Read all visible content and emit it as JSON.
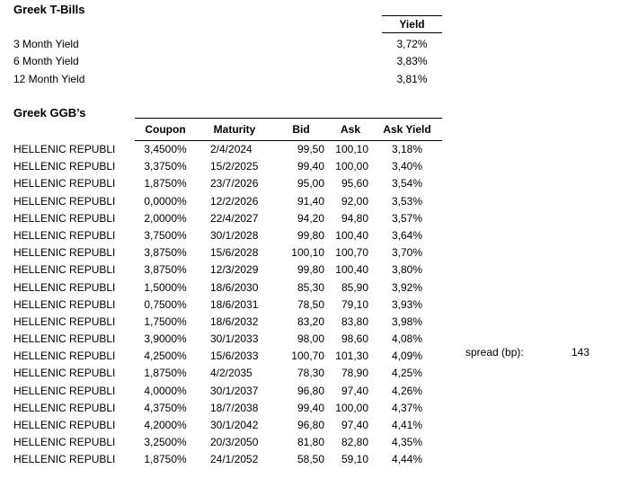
{
  "tbills": {
    "title": "Greek T-Bills",
    "yield_header": "Yield",
    "rows": [
      {
        "label": "3 Month Yield",
        "value": "3,72%"
      },
      {
        "label": "6 Month Yield",
        "value": "3,83%"
      },
      {
        "label": "12 Month Yield",
        "value": "3,81%"
      }
    ]
  },
  "ggb": {
    "title": "Greek GGB’s",
    "headers": {
      "coupon": "Coupon",
      "maturity": "Maturity",
      "bid": "Bid",
      "ask": "Ask",
      "ask_yield": "Ask Yield"
    },
    "rows": [
      {
        "name": "HELLENIC REPUBLI",
        "coupon": "3,4500%",
        "maturity": "2/4/2024",
        "bid": "99,50",
        "ask": "100,10",
        "ask_yield": "3,18%"
      },
      {
        "name": "HELLENIC REPUBLI",
        "coupon": "3,3750%",
        "maturity": "15/2/2025",
        "bid": "99,40",
        "ask": "100,00",
        "ask_yield": "3,40%"
      },
      {
        "name": "HELLENIC REPUBLI",
        "coupon": "1,8750%",
        "maturity": "23/7/2026",
        "bid": "95,00",
        "ask": "95,60",
        "ask_yield": "3,54%"
      },
      {
        "name": "HELLENIC REPUBLI",
        "coupon": "0,0000%",
        "maturity": "12/2/2026",
        "bid": "91,40",
        "ask": "92,00",
        "ask_yield": "3,53%"
      },
      {
        "name": "HELLENIC REPUBLI",
        "coupon": "2,0000%",
        "maturity": "22/4/2027",
        "bid": "94,20",
        "ask": "94,80",
        "ask_yield": "3,57%"
      },
      {
        "name": "HELLENIC REPUBLI",
        "coupon": "3,7500%",
        "maturity": "30/1/2028",
        "bid": "99,80",
        "ask": "100,40",
        "ask_yield": "3,64%"
      },
      {
        "name": "HELLENIC REPUBLI",
        "coupon": "3,8750%",
        "maturity": "15/6/2028",
        "bid": "100,10",
        "ask": "100,70",
        "ask_yield": "3,70%"
      },
      {
        "name": "HELLENIC REPUBLI",
        "coupon": "3,8750%",
        "maturity": "12/3/2029",
        "bid": "99,80",
        "ask": "100,40",
        "ask_yield": "3,80%"
      },
      {
        "name": "HELLENIC REPUBLI",
        "coupon": "1,5000%",
        "maturity": "18/6/2030",
        "bid": "85,30",
        "ask": "85,90",
        "ask_yield": "3,92%"
      },
      {
        "name": "HELLENIC REPUBLI",
        "coupon": "0,7500%",
        "maturity": "18/6/2031",
        "bid": "78,50",
        "ask": "79,10",
        "ask_yield": "3,93%"
      },
      {
        "name": "HELLENIC REPUBLI",
        "coupon": "1,7500%",
        "maturity": "18/6/2032",
        "bid": "83,20",
        "ask": "83,80",
        "ask_yield": "3,98%"
      },
      {
        "name": "HELLENIC REPUBLI",
        "coupon": "3,9000%",
        "maturity": "30/1/2033",
        "bid": "98,00",
        "ask": "98,60",
        "ask_yield": "4,08%"
      },
      {
        "name": "HELLENIC REPUBLI",
        "coupon": "4,2500%",
        "maturity": "15/6/2033",
        "bid": "100,70",
        "ask": "101,30",
        "ask_yield": "4,09%"
      },
      {
        "name": "HELLENIC REPUBLI",
        "coupon": "1,8750%",
        "maturity": "4/2/2035",
        "bid": "78,30",
        "ask": "78,90",
        "ask_yield": "4,25%"
      },
      {
        "name": "HELLENIC REPUBLI",
        "coupon": "4,0000%",
        "maturity": "30/1/2037",
        "bid": "96,80",
        "ask": "97,40",
        "ask_yield": "4,26%"
      },
      {
        "name": "HELLENIC REPUBLI",
        "coupon": "4,3750%",
        "maturity": "18/7/2038",
        "bid": "99,40",
        "ask": "100,00",
        "ask_yield": "4,37%"
      },
      {
        "name": "HELLENIC REPUBLI",
        "coupon": "4,2000%",
        "maturity": "30/1/2042",
        "bid": "96,80",
        "ask": "97,40",
        "ask_yield": "4,41%"
      },
      {
        "name": "HELLENIC REPUBLI",
        "coupon": "3,2500%",
        "maturity": "20/3/2050",
        "bid": "81,80",
        "ask": "82,80",
        "ask_yield": "4,35%"
      },
      {
        "name": "HELLENIC REPUBLI",
        "coupon": "1,8750%",
        "maturity": "24/1/2052",
        "bid": "58,50",
        "ask": "59,10",
        "ask_yield": "4,44%"
      }
    ]
  },
  "spread": {
    "label": "spread (bp):",
    "value": "143"
  }
}
